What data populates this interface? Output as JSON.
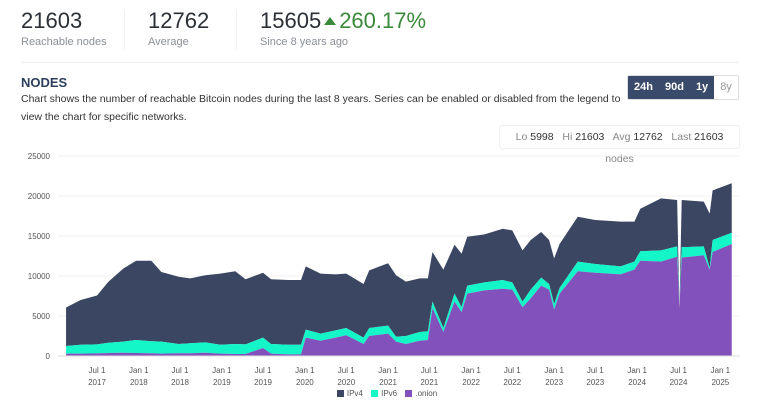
{
  "stats": [
    {
      "value": "21603",
      "label": "Reachable nodes"
    },
    {
      "value": "12762",
      "label": "Average"
    },
    {
      "value": "15605",
      "change": "260.17%",
      "label": "Since 8 years ago"
    }
  ],
  "section": {
    "title": "NODES",
    "description": "Chart shows the number of reachable Bitcoin nodes during the last 8 years. Series can be enabled or disabled from the legend to view the chart for specific networks."
  },
  "ranges": [
    {
      "label": "24h",
      "active": true
    },
    {
      "label": "90d",
      "active": true
    },
    {
      "label": "1y",
      "active": true
    },
    {
      "label": "8y",
      "active": false
    }
  ],
  "summary": {
    "lo_label": "Lo",
    "lo": "5998",
    "hi_label": "Hi",
    "hi": "21603",
    "avg_label": "Avg",
    "avg": "12762",
    "last_label": "Last",
    "last": "21603",
    "unit": "nodes"
  },
  "colors": {
    "ipv4": "#3a4662",
    "ipv6": "#14f5c8",
    "onion": "#8251bb",
    "accent": "#3a8a3a"
  },
  "chart_data": {
    "type": "area",
    "stacked": true,
    "grid": true,
    "legend": "bottom",
    "ylim": [
      0,
      25000
    ],
    "yticks": [
      0,
      5000,
      10000,
      15000,
      20000,
      25000
    ],
    "xticks": [
      [
        "Jul 1",
        "2017"
      ],
      [
        "Jan 1",
        "2018"
      ],
      [
        "Jul 1",
        "2018"
      ],
      [
        "Jan 1",
        "2019"
      ],
      [
        "Jul 1",
        "2019"
      ],
      [
        "Jan 1",
        "2020"
      ],
      [
        "Jul 1",
        "2020"
      ],
      [
        "Jan 1",
        "2021"
      ],
      [
        "Jul 1",
        "2021"
      ],
      [
        "Jan 1",
        "2022"
      ],
      [
        "Jul 1",
        "2022"
      ],
      [
        "Jan 1",
        "2023"
      ],
      [
        "Jul 1",
        "2023"
      ],
      [
        "Jan 1",
        "2024"
      ],
      [
        "Jul 1",
        "2024"
      ],
      [
        "Jan 1",
        "2025"
      ]
    ],
    "xtick_dates": [
      "2017-07-01",
      "2018-01-01",
      "2018-07-01",
      "2019-01-01",
      "2019-07-01",
      "2020-01-01",
      "2020-07-01",
      "2021-01-01",
      "2021-07-01",
      "2022-01-01",
      "2022-07-01",
      "2023-01-01",
      "2023-07-01",
      "2024-01-01",
      "2024-07-01",
      "2025-01-01"
    ],
    "x": [
      "2017-02-15",
      "2017-04-20",
      "2017-07-01",
      "2017-08-20",
      "2017-10-25",
      "2017-12-20",
      "2018-02-25",
      "2018-04-10",
      "2018-06-25",
      "2018-08-15",
      "2018-10-20",
      "2018-12-25",
      "2019-03-01",
      "2019-04-15",
      "2019-07-01",
      "2019-08-05",
      "2019-10-20",
      "2019-12-15",
      "2020-01-05",
      "2020-03-10",
      "2020-05-15",
      "2020-07-01",
      "2020-09-15",
      "2020-10-10",
      "2021-01-01",
      "2021-02-05",
      "2021-03-20",
      "2021-05-20",
      "2021-06-25",
      "2021-07-15",
      "2021-09-01",
      "2021-10-20",
      "2021-11-20",
      "2021-12-15",
      "2022-03-01",
      "2022-05-20",
      "2022-07-01",
      "2022-08-15",
      "2022-09-20",
      "2022-11-05",
      "2022-12-10",
      "2023-01-01",
      "2023-01-25",
      "2023-04-15",
      "2023-07-01",
      "2023-10-20",
      "2023-12-20",
      "2024-01-15",
      "2024-04-15",
      "2024-06-25",
      "2024-07-05",
      "2024-07-15",
      "2024-10-20",
      "2024-11-15",
      "2024-11-28",
      "2025-02-20"
    ],
    "series": [
      {
        "name": "IPv4",
        "values": [
          4820,
          5600,
          6120,
          7630,
          9140,
          9900,
          10050,
          8700,
          8400,
          8100,
          8400,
          8900,
          9100,
          8150,
          8100,
          8100,
          8100,
          8100,
          7900,
          7500,
          7000,
          6800,
          6700,
          7200,
          7800,
          7700,
          6800,
          6700,
          6600,
          6200,
          7300,
          6100,
          6700,
          6100,
          6000,
          6400,
          6500,
          6400,
          6200,
          5700,
          5500,
          5700,
          5500,
          5600,
          5500,
          5600,
          5000,
          5300,
          6500,
          5800,
          0,
          5900,
          5600,
          6800,
          6200,
          6200
        ]
      },
      {
        "name": "IPv6",
        "values": [
          960,
          1100,
          1120,
          1270,
          1400,
          1620,
          1500,
          1500,
          1150,
          1250,
          1300,
          1100,
          1250,
          1200,
          1300,
          1200,
          1200,
          1200,
          1000,
          900,
          900,
          900,
          800,
          1000,
          1000,
          600,
          1000,
          1100,
          1100,
          800,
          500,
          1000,
          600,
          1000,
          1000,
          1100,
          900,
          700,
          1100,
          1000,
          700,
          700,
          700,
          1200,
          1100,
          1000,
          1000,
          1200,
          1400,
          1300,
          0,
          1300,
          1100,
          200,
          1500,
          1400
        ]
      },
      {
        "name": ".onion",
        "values": [
          290,
          300,
          330,
          380,
          400,
          380,
          350,
          300,
          350,
          350,
          400,
          300,
          250,
          250,
          1000,
          300,
          200,
          200,
          2300,
          1900,
          2300,
          2600,
          1500,
          2500,
          2800,
          1800,
          1500,
          1900,
          2000,
          6000,
          3000,
          6800,
          5500,
          7800,
          8200,
          8400,
          8300,
          6100,
          7200,
          8800,
          8300,
          5800,
          7800,
          10600,
          10400,
          10200,
          10800,
          11900,
          11800,
          12400,
          6000,
          12300,
          12600,
          10800,
          13000,
          14000
        ]
      }
    ]
  },
  "legend": [
    {
      "label": "IPv4",
      "key": "ipv4"
    },
    {
      "label": "IPv6",
      "key": "ipv6"
    },
    {
      "label": ".onion",
      "key": "onion"
    }
  ]
}
